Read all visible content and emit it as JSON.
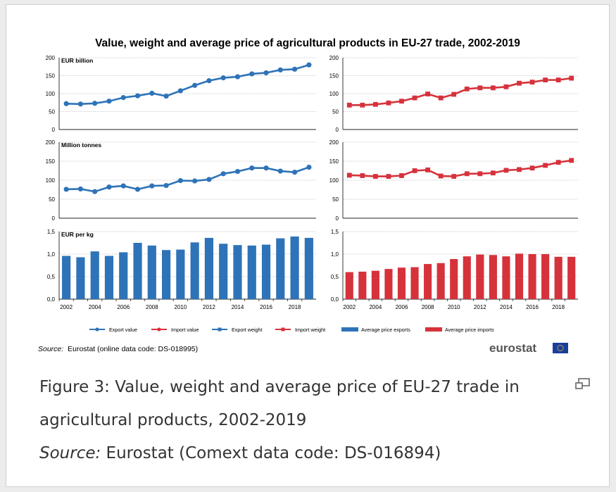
{
  "chart_data": {
    "type": "multi-panel bar and line",
    "title": "Value, weight and average price of agricultural products in EU-27 trade, 2002-2019",
    "years": [
      2002,
      2003,
      2004,
      2005,
      2006,
      2007,
      2008,
      2009,
      2010,
      2011,
      2012,
      2013,
      2014,
      2015,
      2016,
      2017,
      2018,
      2019
    ],
    "x_ticks": [
      "2002",
      "2004",
      "2006",
      "2008",
      "2010",
      "2012",
      "2014",
      "2016",
      "2018"
    ],
    "panels": [
      {
        "id": "value",
        "ylabel": "EUR billion",
        "ylim": [
          0,
          200
        ],
        "y_ticks": [
          "200",
          "150",
          "100",
          "50",
          "0"
        ],
        "type": "line",
        "exports": {
          "name": "Export value",
          "values": [
            72,
            71,
            73,
            79,
            89,
            94,
            101,
            93,
            108,
            123,
            136,
            144,
            147,
            155,
            158,
            166,
            168,
            180
          ]
        },
        "imports": {
          "name": "Import value",
          "values": [
            68,
            68,
            70,
            74,
            79,
            88,
            99,
            88,
            98,
            113,
            116,
            116,
            119,
            129,
            132,
            138,
            138,
            143
          ]
        }
      },
      {
        "id": "weight",
        "ylabel": "Million tonnes",
        "ylim": [
          0,
          200
        ],
        "y_ticks": [
          "200",
          "150",
          "100",
          "50",
          "0"
        ],
        "type": "line",
        "exports": {
          "name": "Export weight",
          "values": [
            76,
            77,
            70,
            82,
            85,
            76,
            85,
            86,
            99,
            98,
            102,
            117,
            123,
            132,
            132,
            124,
            121,
            134
          ]
        },
        "imports": {
          "name": "Import weight",
          "values": [
            113,
            112,
            110,
            110,
            112,
            125,
            127,
            111,
            110,
            117,
            117,
            119,
            126,
            128,
            132,
            139,
            147,
            152
          ]
        }
      },
      {
        "id": "price",
        "ylabel": "EUR per kg",
        "ylim": [
          0,
          1.5
        ],
        "y_ticks": [
          "1,5",
          "1,0",
          "0,5",
          "0,0"
        ],
        "type": "bar",
        "exports": {
          "name": "Average price exports",
          "values": [
            0.96,
            0.93,
            1.06,
            0.96,
            1.04,
            1.25,
            1.19,
            1.09,
            1.1,
            1.26,
            1.36,
            1.23,
            1.2,
            1.19,
            1.21,
            1.35,
            1.39,
            1.36
          ]
        },
        "imports": {
          "name": "Average price imports",
          "values": [
            0.6,
            0.61,
            0.63,
            0.67,
            0.7,
            0.71,
            0.78,
            0.8,
            0.89,
            0.95,
            0.99,
            0.98,
            0.95,
            1.01,
            1.0,
            1.0,
            0.94,
            0.94
          ]
        }
      }
    ],
    "colors": {
      "exports": "#2e73b8",
      "imports": "#d6323b"
    },
    "legend": [
      "Export value",
      "Import value",
      "Export weight",
      "Import weight",
      "Average price exports",
      "Average price imports"
    ],
    "legend_position": "bottom",
    "grid": "dotted horizontal"
  },
  "figure_source": {
    "label": "Source:",
    "text": "Eurostat (online data code: DS-018995)"
  },
  "logo_text": "eurostat",
  "caption": {
    "line1": "Figure 3: Value, weight and average price of EU-27 trade in",
    "line2": "agricultural products, 2002-2019",
    "source_label": "Source:",
    "source_text": " Eurostat (Comext data code: DS-016894)"
  },
  "icons": {
    "expand": "expand-icon"
  }
}
